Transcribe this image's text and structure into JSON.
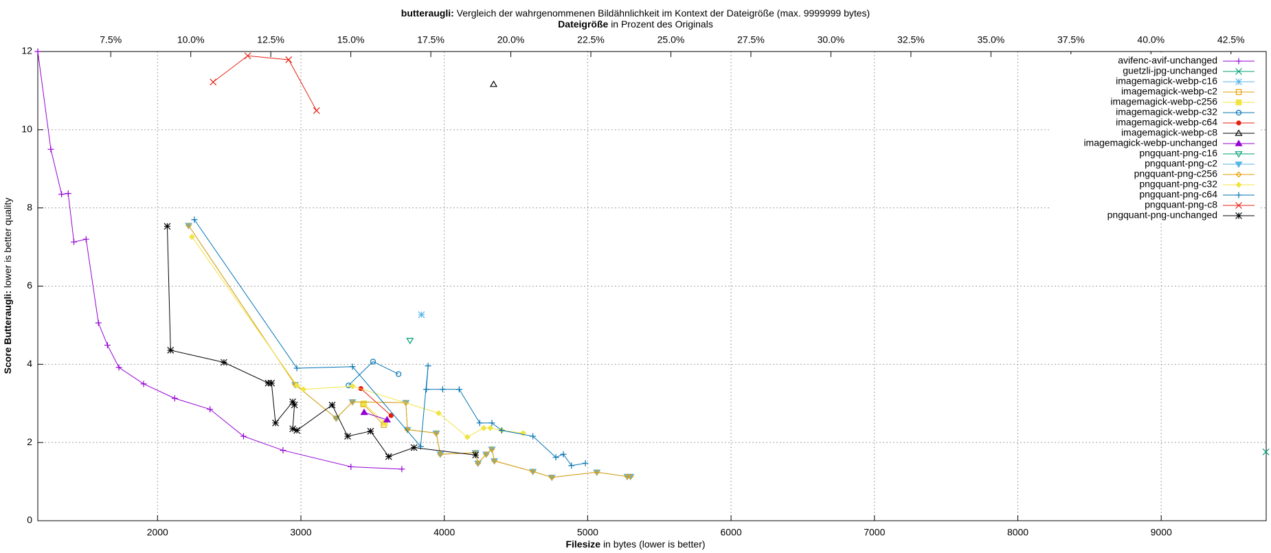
{
  "chart_data": {
    "type": "line",
    "title_bold": "butteraugli:",
    "title": "Vergleich der wahrgenommenen Bildähnlichkeit im Kontext der Dateigröße (max. 9999999 bytes)",
    "x2_label_bold": "Dateigröße",
    "x2_label": "in Prozent des Originals",
    "x_label_bold": "Filesize",
    "x_label": "in bytes (lower is better)",
    "y_label_bold": "Score Butteraugli:",
    "y_label": "lower is better quality",
    "xlim": [
      1165,
      9732
    ],
    "xticks": [
      2000,
      3000,
      4000,
      5000,
      6000,
      7000,
      8000,
      9000
    ],
    "ylim": [
      0,
      12
    ],
    "yticks": [
      0,
      2,
      4,
      6,
      8,
      10,
      12
    ],
    "x2lim": [
      5.22,
      43.6
    ],
    "x2ticks": [
      {
        "value": 7.5,
        "label": "7.5%"
      },
      {
        "value": 10,
        "label": "10.0%"
      },
      {
        "value": 12.5,
        "label": "12.5%"
      },
      {
        "value": 15,
        "label": "15.0%"
      },
      {
        "value": 17.5,
        "label": "17.5%"
      },
      {
        "value": 20,
        "label": "20.0%"
      },
      {
        "value": 22.5,
        "label": "22.5%"
      },
      {
        "value": 25,
        "label": "25.0%"
      },
      {
        "value": 27.5,
        "label": "27.5%"
      },
      {
        "value": 30,
        "label": "30.0%"
      },
      {
        "value": 32.5,
        "label": "32.5%"
      },
      {
        "value": 35,
        "label": "35.0%"
      },
      {
        "value": 37.5,
        "label": "37.5%"
      },
      {
        "value": 40,
        "label": "40.0%"
      },
      {
        "value": 42.5,
        "label": "42.5%"
      }
    ],
    "grid": true,
    "legend": "top-right",
    "series": [
      {
        "name": "avifenc-avif-unchanged",
        "color": "#9400d3",
        "marker": "plus",
        "x": [
          1165,
          1256,
          1331,
          1377,
          1417,
          1502,
          1588,
          1651,
          1731,
          1903,
          2120,
          2366,
          2600,
          2875,
          3349,
          3704
        ],
        "values": [
          12.0,
          9.5,
          8.35,
          8.37,
          7.13,
          7.2,
          5.06,
          4.49,
          3.92,
          3.5,
          3.13,
          2.85,
          2.16,
          1.8,
          1.38,
          1.32
        ]
      },
      {
        "name": "guetzli-jpg-unchanged",
        "color": "#009e73",
        "marker": "x",
        "x": [
          9730
        ],
        "values": [
          1.76
        ]
      },
      {
        "name": "imagemagick-webp-c16",
        "color": "#56b4e9",
        "marker": "star",
        "x": [
          3841
        ],
        "values": [
          5.27
        ]
      },
      {
        "name": "imagemagick-webp-c2",
        "color": "#e69f00",
        "marker": "square",
        "x": [
          3435,
          3578
        ],
        "values": [
          2.98,
          2.45
        ]
      },
      {
        "name": "imagemagick-webp-c256",
        "color": "#f0e442",
        "marker": "square-filled",
        "x": [
          3440,
          3585
        ],
        "values": [
          3.0,
          2.5
        ]
      },
      {
        "name": "imagemagick-webp-c32",
        "color": "#0072b2",
        "marker": "circle",
        "x": [
          3332,
          3503,
          3681
        ],
        "values": [
          3.46,
          4.07,
          3.75
        ]
      },
      {
        "name": "imagemagick-webp-c64",
        "color": "#e51e10",
        "marker": "dot",
        "x": [
          3418,
          3629
        ],
        "values": [
          3.38,
          2.69
        ]
      },
      {
        "name": "imagemagick-webp-c8",
        "color": "#000000",
        "marker": "triangle",
        "x": [
          4344
        ],
        "values": [
          11.16
        ]
      },
      {
        "name": "imagemagick-webp-unchanged",
        "color": "#9400d3",
        "marker": "triangle-filled",
        "x": [
          3441,
          3601
        ],
        "values": [
          2.77,
          2.58
        ]
      },
      {
        "name": "pngquant-png-c16",
        "color": "#009e73",
        "marker": "down-triangle",
        "x": [
          3761
        ],
        "values": [
          4.61
        ]
      },
      {
        "name": "pngquant-png-c2",
        "color": "#56b4e9",
        "marker": "down-triangle-filled",
        "x": [
          2217,
          2960,
          3246,
          3360,
          3732,
          3743,
          3944,
          3972,
          4218,
          4235,
          4292,
          4332,
          4349,
          4618,
          4750,
          5064,
          5276,
          5299
        ],
        "values": [
          7.55,
          3.48,
          2.62,
          3.04,
          3.02,
          2.33,
          2.24,
          1.7,
          1.74,
          1.47,
          1.7,
          1.83,
          1.53,
          1.26,
          1.11,
          1.24,
          1.13,
          1.13
        ]
      },
      {
        "name": "pngquant-png-c256",
        "color": "#e69f00",
        "marker": "diamond",
        "x": [
          2217,
          2960,
          3246,
          3360,
          3732,
          3743,
          3944,
          3972,
          4218,
          4235,
          4292,
          4332,
          4349,
          4618,
          4750,
          5064,
          5276,
          5299
        ],
        "values": [
          7.55,
          3.48,
          2.62,
          3.04,
          3.02,
          2.33,
          2.24,
          1.7,
          1.74,
          1.47,
          1.7,
          1.83,
          1.53,
          1.26,
          1.11,
          1.24,
          1.13,
          1.13
        ]
      },
      {
        "name": "pngquant-png-c32",
        "color": "#f0e442",
        "marker": "diamond-filled",
        "x": [
          2240,
          2972,
          3018,
          3360,
          3961,
          4161,
          4275,
          4321,
          4401,
          4550
        ],
        "values": [
          7.26,
          3.46,
          3.36,
          3.44,
          2.75,
          2.14,
          2.37,
          2.37,
          2.31,
          2.24
        ]
      },
      {
        "name": "pngquant-png-c64",
        "color": "#0072b2",
        "marker": "plus",
        "x": [
          2257,
          2972,
          3360,
          3835,
          3887,
          3875,
          3989,
          4104,
          4247,
          4332,
          4401,
          4618,
          4778,
          4830,
          4887,
          4984
        ],
        "values": [
          7.7,
          3.9,
          3.94,
          1.9,
          3.96,
          3.36,
          3.36,
          3.36,
          2.5,
          2.5,
          2.31,
          2.16,
          1.62,
          1.7,
          1.41,
          1.47
        ]
      },
      {
        "name": "pngquant-png-c8",
        "color": "#e51e10",
        "marker": "x",
        "x": [
          2388,
          2629,
          2915,
          3109
        ],
        "values": [
          11.22,
          11.89,
          11.79,
          10.49
        ]
      },
      {
        "name": "pngquant-png-unchanged",
        "color": "#000000",
        "marker": "star",
        "x": [
          2068,
          2091,
          2463,
          2772,
          2795,
          2823,
          2943,
          2955,
          2943,
          2972,
          3218,
          3326,
          3486,
          3612,
          3789,
          4218
        ],
        "values": [
          7.53,
          4.36,
          4.05,
          3.52,
          3.52,
          2.5,
          3.04,
          2.96,
          2.35,
          2.31,
          2.96,
          2.16,
          2.29,
          1.64,
          1.87,
          1.68
        ]
      }
    ]
  }
}
